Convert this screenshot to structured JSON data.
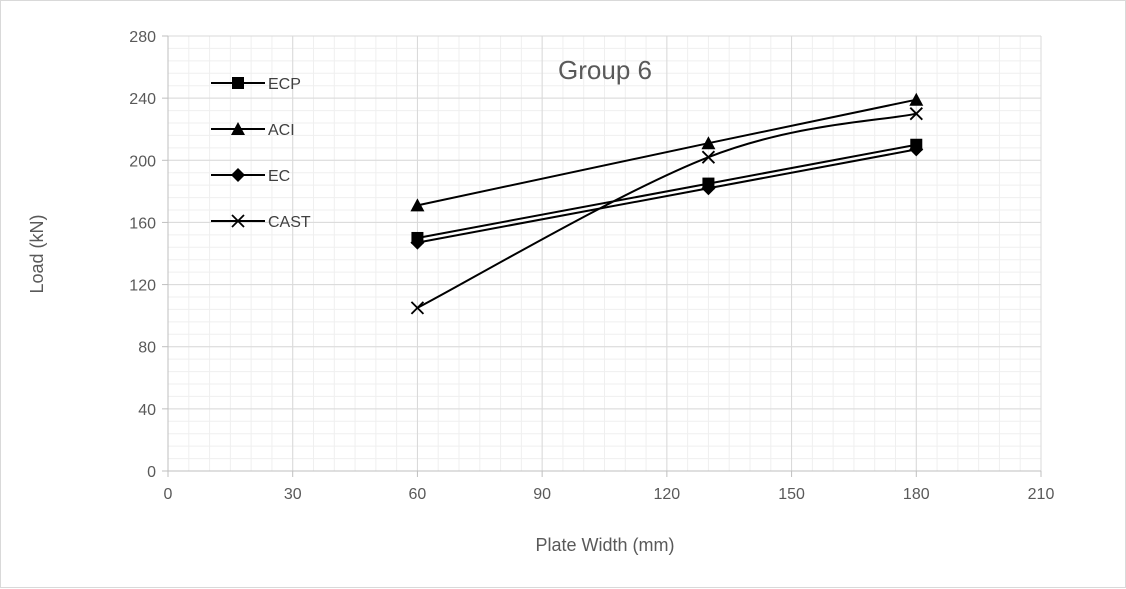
{
  "chart_data": {
    "type": "line",
    "title": "Group 6",
    "xlabel": "Plate Width (mm)",
    "ylabel": "Load (kN)",
    "xlim": [
      0,
      210
    ],
    "ylim": [
      0,
      280
    ],
    "x_ticks": [
      0,
      30,
      60,
      90,
      120,
      150,
      180,
      210
    ],
    "y_ticks": [
      0,
      40,
      80,
      120,
      160,
      200,
      240,
      280
    ],
    "grid": {
      "major": true,
      "minor": true
    },
    "legend_position": "top-left",
    "x": [
      60,
      130,
      180
    ],
    "series": [
      {
        "name": "ECP",
        "marker": "square",
        "values": [
          150,
          185,
          210
        ],
        "smooth": false
      },
      {
        "name": "ACI",
        "marker": "triangle",
        "values": [
          171,
          211,
          239
        ],
        "smooth": false
      },
      {
        "name": "EC",
        "marker": "diamond",
        "values": [
          147,
          182,
          207
        ],
        "smooth": false
      },
      {
        "name": "CAST",
        "marker": "x",
        "values": [
          105,
          202,
          230
        ],
        "smooth": true
      }
    ],
    "colors": {
      "series": "#000000",
      "grid_major": "#d9d9d9",
      "grid_minor": "#efefef",
      "text": "#595959"
    }
  }
}
